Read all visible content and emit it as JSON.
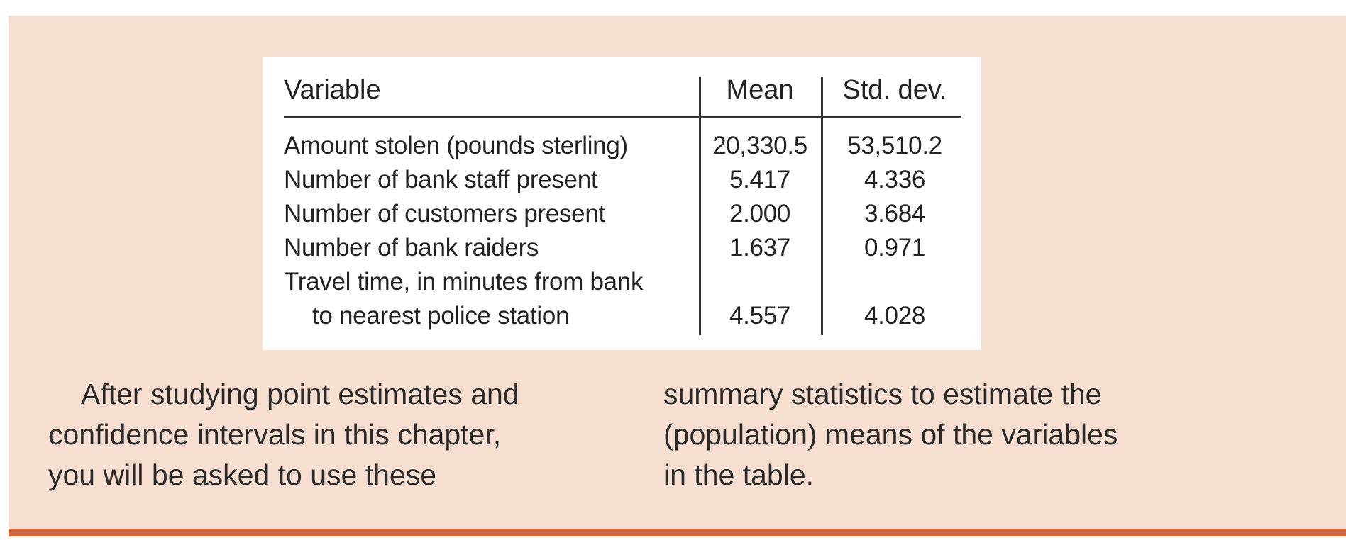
{
  "table": {
    "headers": {
      "variable": "Variable",
      "mean": "Mean",
      "std_dev": "Std. dev."
    },
    "rows": [
      {
        "variable": "Amount stolen (pounds sterling)",
        "mean": "20,330.5",
        "std_dev": "53,510.2"
      },
      {
        "variable": "Number of bank staff present",
        "mean": "5.417",
        "std_dev": "4.336"
      },
      {
        "variable": "Number of customers present",
        "mean": "2.000",
        "std_dev": "3.684"
      },
      {
        "variable": "Number of bank raiders",
        "mean": "1.637",
        "std_dev": "0.971"
      },
      {
        "variable": "Travel time, in minutes from bank",
        "variable_cont": "to nearest police station",
        "mean": "4.557",
        "std_dev": "4.028"
      }
    ]
  },
  "caption": {
    "left_lines": [
      "After studying point estimates and",
      "confidence intervals in this chapter,",
      "you will be asked to use these"
    ],
    "right_lines": [
      "summary statistics to estimate the",
      "(population) means of the variables",
      "in the table."
    ]
  },
  "colors": {
    "panel_background": "#f6dfd1",
    "accent_rule": "#cf6a3c"
  }
}
